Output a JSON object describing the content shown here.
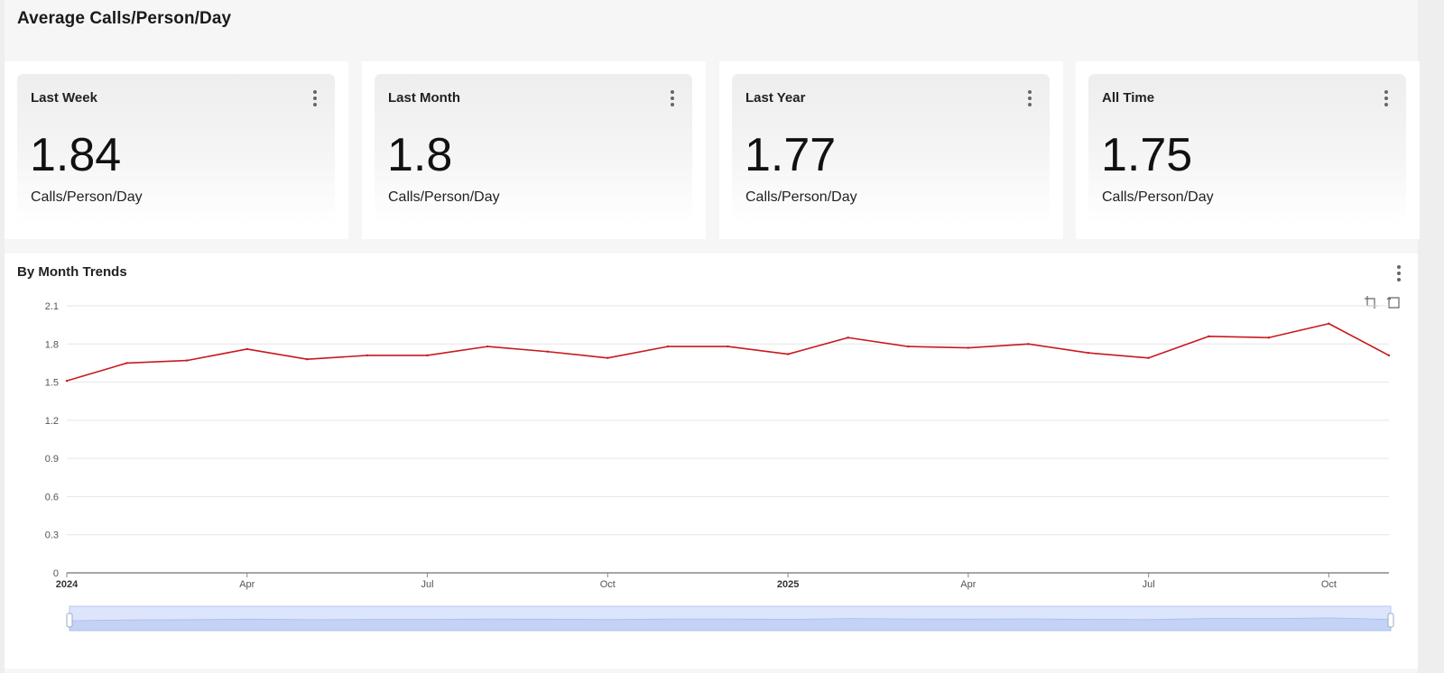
{
  "page": {
    "title": "Average Calls/Person/Day"
  },
  "cards": [
    {
      "label": "Last Week",
      "value": "1.84",
      "unit": "Calls/Person/Day"
    },
    {
      "label": "Last Month",
      "value": "1.8",
      "unit": "Calls/Person/Day"
    },
    {
      "label": "Last Year",
      "value": "1.77",
      "unit": "Calls/Person/Day"
    },
    {
      "label": "All Time",
      "value": "1.75",
      "unit": "Calls/Person/Day"
    }
  ],
  "trend": {
    "title": "By Month Trends"
  },
  "colors": {
    "series_line": "#c8191e",
    "grid": "#e6e6e6",
    "slider_fill": "#dce5fb",
    "slider_border": "#b9c8ee"
  },
  "icons": [
    "more-vert-icon",
    "zoom-select-icon",
    "zoom-reset-icon"
  ],
  "chart_data": {
    "type": "line",
    "title": "By Month Trends",
    "xlabel": "",
    "ylabel": "",
    "ylim": [
      0,
      2.1
    ],
    "y_ticks": [
      "0",
      "0.3",
      "0.6",
      "0.9",
      "1.2",
      "1.5",
      "1.8",
      "2.1"
    ],
    "grid": true,
    "x_ticks": [
      {
        "label": "2024",
        "month_index": 0,
        "bold": true
      },
      {
        "label": "Apr",
        "month_index": 3,
        "bold": false
      },
      {
        "label": "Jul",
        "month_index": 6,
        "bold": false
      },
      {
        "label": "Oct",
        "month_index": 9,
        "bold": false
      },
      {
        "label": "2025",
        "month_index": 12,
        "bold": true
      },
      {
        "label": "Apr",
        "month_index": 15,
        "bold": false
      },
      {
        "label": "Jul",
        "month_index": 18,
        "bold": false
      },
      {
        "label": "Oct",
        "month_index": 21,
        "bold": false
      }
    ],
    "x": [
      "2024-01",
      "2024-02",
      "2024-03",
      "2024-04",
      "2024-05",
      "2024-06",
      "2024-07",
      "2024-08",
      "2024-09",
      "2024-10",
      "2024-11",
      "2024-12",
      "2025-01",
      "2025-02",
      "2025-03",
      "2025-04",
      "2025-05",
      "2025-06",
      "2025-07",
      "2025-08",
      "2025-09",
      "2025-10",
      "2025-11"
    ],
    "series": [
      {
        "values": [
          1.51,
          1.65,
          1.67,
          1.76,
          1.68,
          1.71,
          1.71,
          1.78,
          1.74,
          1.69,
          1.78,
          1.78,
          1.72,
          1.85,
          1.78,
          1.77,
          1.8,
          1.73,
          1.69,
          1.86,
          1.85,
          1.96,
          1.71
        ]
      }
    ],
    "legend": "none",
    "data_zoom_slider": true
  }
}
